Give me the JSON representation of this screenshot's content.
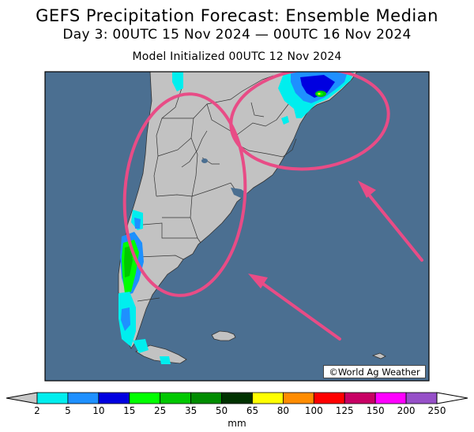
{
  "title": "GEFS Precipitation Forecast: Ensemble Median",
  "subtitle": "Day 3: 00UTC 15 Nov 2024 — 00UTC 16 Nov 2024",
  "init_line": "Model Initialized 00UTC 12 Nov 2024",
  "credit": "©World Ag Weather",
  "colorbar": {
    "unit": "mm",
    "ticks": [
      "2",
      "5",
      "10",
      "15",
      "25",
      "35",
      "50",
      "65",
      "80",
      "100",
      "125",
      "150",
      "200",
      "250"
    ],
    "colors": [
      "#00eeee",
      "#1e90ff",
      "#0000e0",
      "#00ff00",
      "#00c800",
      "#008c00",
      "#003200",
      "#ffff00",
      "#ff8c00",
      "#ff0000",
      "#c80064",
      "#ff00ff",
      "#9650c8"
    ],
    "low_color": "#c8c8c8",
    "high_color": "#ffffff"
  },
  "map": {
    "ocean_color": "#4b6f91",
    "land_color": "#c2c2c2",
    "annotation_color": "#e84c86"
  }
}
